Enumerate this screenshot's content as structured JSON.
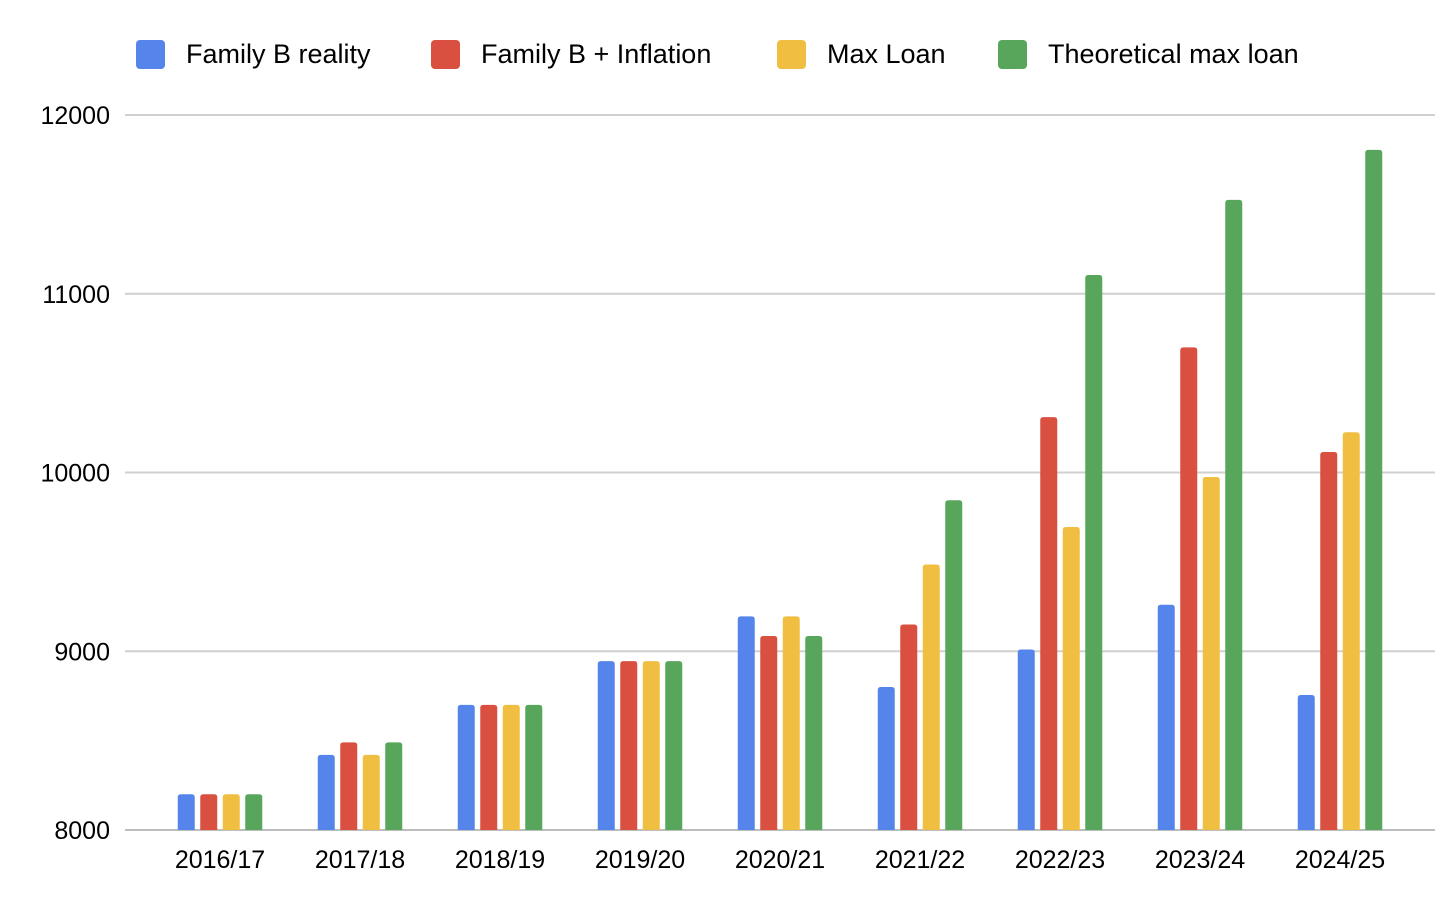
{
  "chart_data": {
    "type": "bar",
    "title": "",
    "xlabel": "",
    "ylabel": "",
    "ylim": [
      8000,
      12000
    ],
    "yticks": [
      "8000",
      "9000",
      "10000",
      "11000",
      "12000"
    ],
    "grid": true,
    "legend_position": "top",
    "categories": [
      "2016/17",
      "2017/18",
      "2018/19",
      "2019/20",
      "2020/21",
      "2021/22",
      "2022/23",
      "2023/24",
      "2024/25"
    ],
    "series": [
      {
        "name": "Family B reality",
        "color": "#5585eb",
        "values": [
          8200,
          8420,
          8700,
          8945,
          9195,
          8800,
          9010,
          9260,
          8755
        ]
      },
      {
        "name": "Family B + Inflation",
        "color": "#d95040",
        "values": [
          8200,
          8490,
          8700,
          8945,
          9085,
          9150,
          10310,
          10700,
          10115
        ]
      },
      {
        "name": "Max Loan",
        "color": "#f0bf42",
        "values": [
          8200,
          8420,
          8700,
          8945,
          9195,
          9485,
          9695,
          9975,
          10225
        ]
      },
      {
        "name": "Theoretical max loan",
        "color": "#58a65c",
        "values": [
          8200,
          8490,
          8700,
          8945,
          9085,
          9845,
          11105,
          11525,
          11805
        ]
      }
    ]
  }
}
